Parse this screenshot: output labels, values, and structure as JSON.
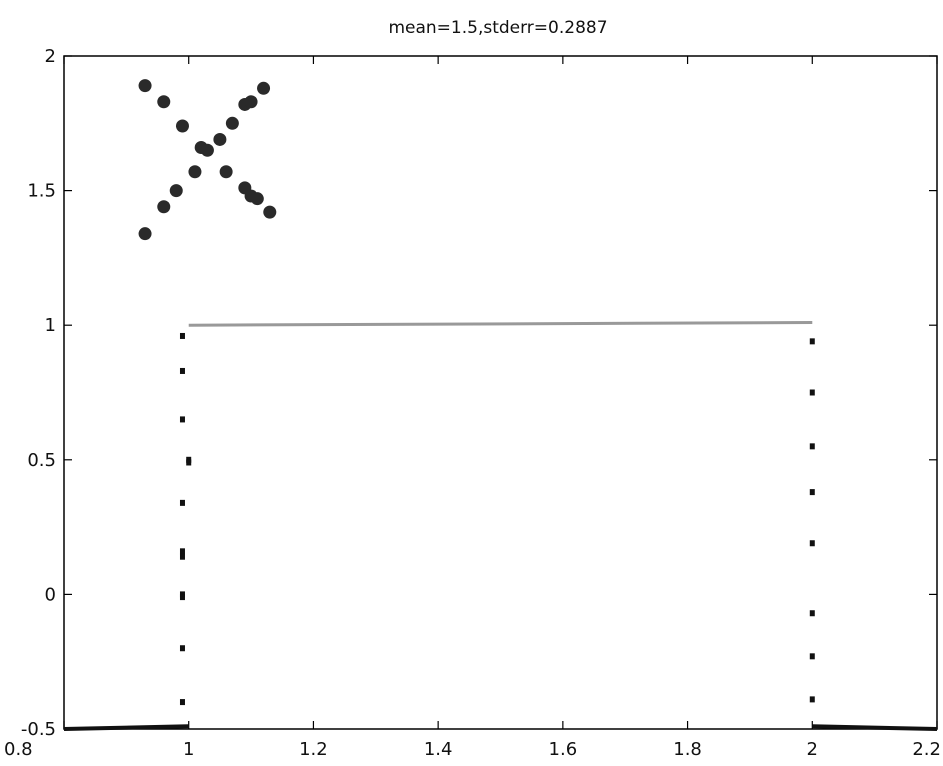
{
  "chart_data": {
    "type": "scatter",
    "title": "mean=1.5,stderr=0.2887",
    "xlabel": "",
    "ylabel": "",
    "xlim": [
      0.8,
      2.2
    ],
    "ylim": [
      -0.5,
      2
    ],
    "x_ticks": [
      0.8,
      1,
      1.2,
      1.4,
      1.6,
      1.8,
      2,
      2.2
    ],
    "y_ticks": [
      -0.5,
      0,
      0.5,
      1,
      1.5,
      2
    ],
    "x_tick_labels": [
      "0.8",
      "1",
      "1.2",
      "1.4",
      "1.6",
      "1.8",
      "2",
      "2.2"
    ],
    "y_tick_labels": [
      "-0.5",
      "0",
      "0.5",
      "1",
      "1.5",
      "2"
    ],
    "grid": false,
    "legend": "none",
    "series": [
      {
        "marker": "circle",
        "color": "#2a2a2a",
        "points": [
          [
            0.93,
            1.89
          ],
          [
            0.96,
            1.83
          ],
          [
            0.99,
            1.74
          ],
          [
            1.05,
            1.69
          ],
          [
            1.07,
            1.75
          ],
          [
            1.09,
            1.82
          ],
          [
            1.1,
            1.83
          ],
          [
            1.12,
            1.88
          ],
          [
            1.02,
            1.66
          ],
          [
            1.03,
            1.65
          ],
          [
            1.01,
            1.57
          ],
          [
            0.98,
            1.5
          ],
          [
            0.96,
            1.44
          ],
          [
            0.93,
            1.34
          ],
          [
            1.06,
            1.57
          ],
          [
            1.09,
            1.51
          ],
          [
            1.1,
            1.48
          ],
          [
            1.11,
            1.47
          ],
          [
            1.13,
            1.42
          ]
        ]
      },
      {
        "marker": "dot",
        "color": "#111111",
        "points": [
          [
            0.99,
            0.96
          ],
          [
            0.99,
            0.83
          ],
          [
            0.99,
            0.65
          ],
          [
            1.0,
            0.5
          ],
          [
            1.0,
            0.49
          ],
          [
            0.99,
            0.34
          ],
          [
            0.99,
            0.16
          ],
          [
            0.99,
            0.14
          ],
          [
            0.99,
            0.0
          ],
          [
            0.99,
            -0.01
          ],
          [
            0.99,
            -0.2
          ],
          [
            0.99,
            -0.4
          ],
          [
            2.0,
            0.94
          ],
          [
            2.0,
            0.75
          ],
          [
            2.0,
            0.55
          ],
          [
            2.0,
            0.38
          ],
          [
            2.0,
            0.19
          ],
          [
            2.0,
            -0.07
          ],
          [
            2.0,
            -0.23
          ],
          [
            2.0,
            -0.39
          ]
        ]
      },
      {
        "marker": "line",
        "color": "#999999",
        "points": [
          [
            1.0,
            1.0
          ],
          [
            2.0,
            1.01
          ]
        ]
      },
      {
        "marker": "line",
        "color": "#111111",
        "points": [
          [
            0.8,
            -0.5
          ],
          [
            1.0,
            -0.49
          ]
        ]
      },
      {
        "marker": "line",
        "color": "#111111",
        "points": [
          [
            2.0,
            -0.49
          ],
          [
            2.2,
            -0.5
          ]
        ]
      }
    ]
  }
}
